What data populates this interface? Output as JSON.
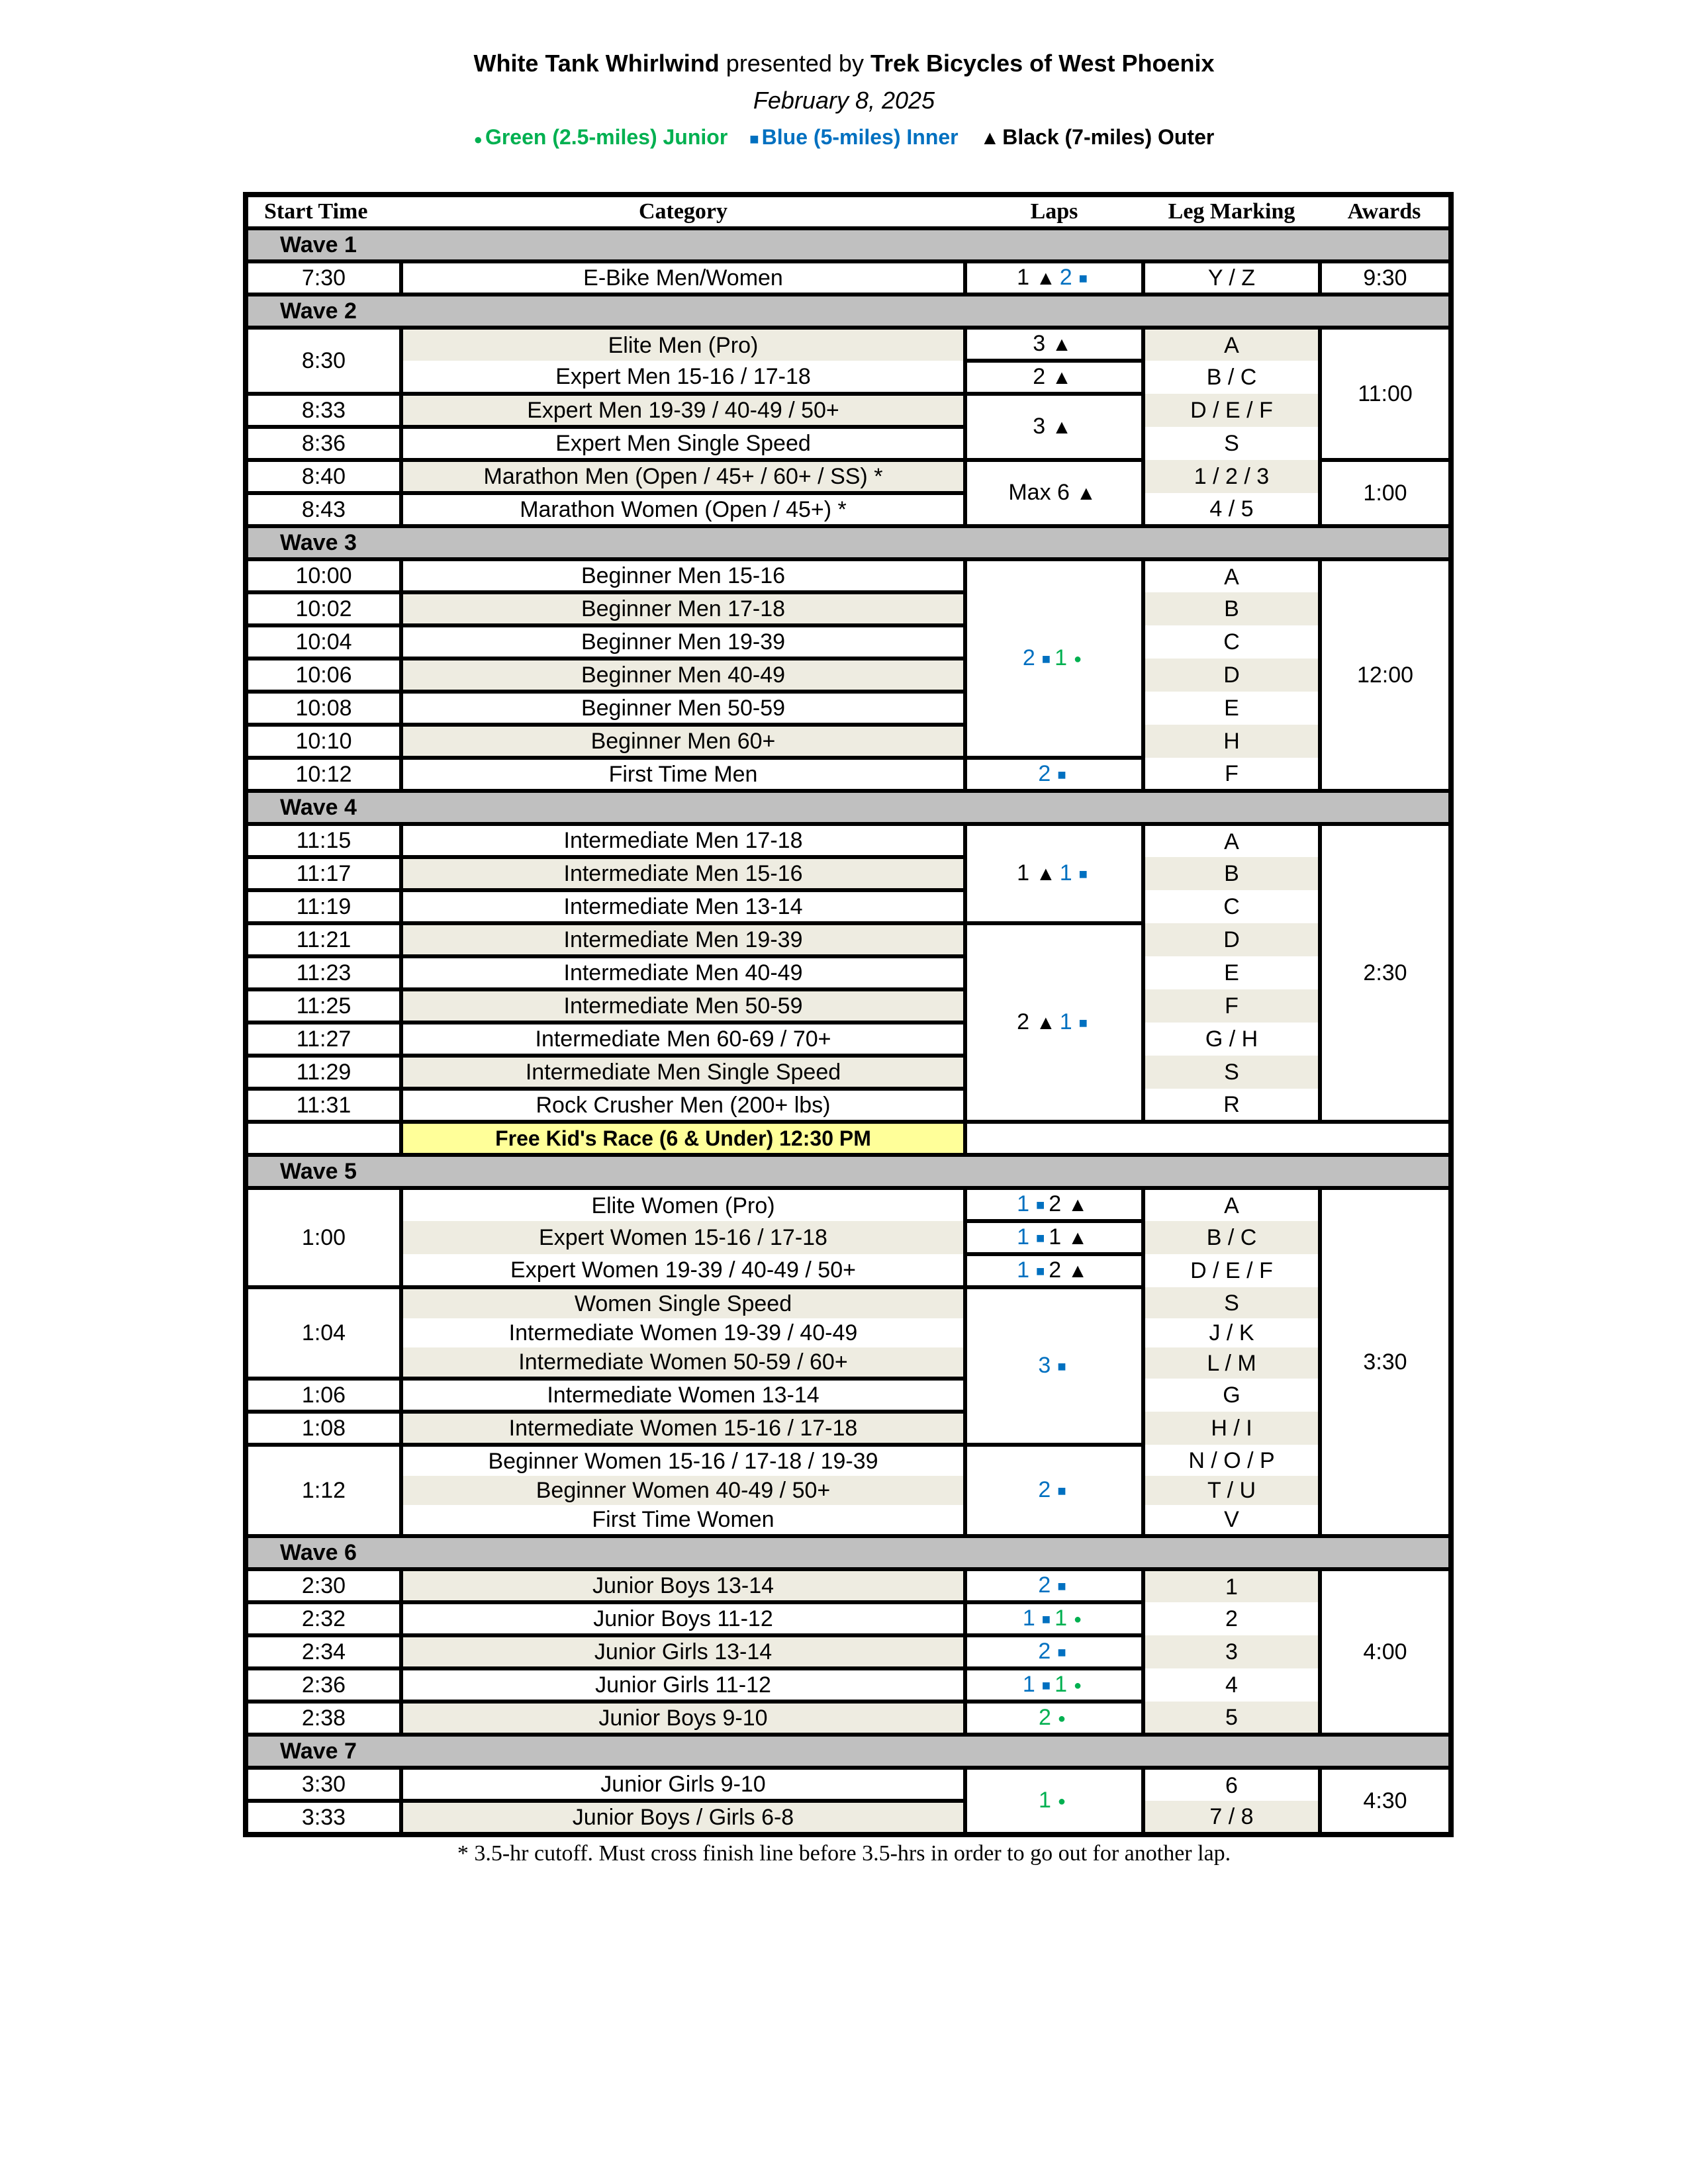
{
  "header": {
    "event": "White Tank Whirlwind",
    "presented_by": "presented by",
    "sponsor": "Trek Bicycles of West Phoenix",
    "date": "February 8, 2025",
    "legend": [
      {
        "course": "green",
        "label": "Green (2.5-miles) Junior",
        "icon": "circle"
      },
      {
        "course": "blue",
        "label": "Blue (5-miles) Inner",
        "icon": "square"
      },
      {
        "course": "black",
        "label": "Black (7-miles) Outer",
        "icon": "triangle"
      }
    ]
  },
  "colors": {
    "green": "#00B050",
    "blue": "#0070C0",
    "black": "#000000",
    "wave_bg": "#C0C0C0",
    "shade_bg": "#EEECE1",
    "kids_bg": "#FFFF99"
  },
  "columns": [
    "Start Time",
    "Category",
    "Laps",
    "Leg Marking",
    "Awards"
  ],
  "sections": [
    {
      "type": "wave",
      "label": "Wave 1",
      "rows": [
        {
          "category": "E-Bike Men/Women",
          "leg": "Y / Z",
          "shaded": false
        }
      ],
      "times": [
        {
          "time": "7:30",
          "span": 1
        }
      ],
      "laps": [
        {
          "parts": [
            {
              "n": "1",
              "course": "black"
            },
            {
              "n": "2",
              "course": "blue"
            }
          ],
          "span": 1
        }
      ],
      "awards": [
        {
          "award": "9:30",
          "span": 1
        }
      ]
    },
    {
      "type": "wave",
      "label": "Wave 2",
      "rows": [
        {
          "category": "Elite Men (Pro)",
          "leg": "A",
          "shaded": true
        },
        {
          "category": "Expert Men 15-16 / 17-18",
          "leg": "B / C",
          "shaded": false
        },
        {
          "category": "Expert Men 19-39 / 40-49 / 50+",
          "leg": "D / E / F",
          "shaded": true
        },
        {
          "category": "Expert Men Single Speed",
          "leg": "S",
          "shaded": false
        },
        {
          "category": "Marathon Men (Open / 45+ / 60+ / SS) *",
          "leg": "1 / 2 / 3",
          "shaded": true
        },
        {
          "category": "Marathon Women (Open / 45+) *",
          "leg": "4 / 5",
          "shaded": false
        }
      ],
      "times": [
        {
          "time": "8:30",
          "span": 2
        },
        {
          "time": "8:33",
          "span": 1
        },
        {
          "time": "8:36",
          "span": 1
        },
        {
          "time": "8:40",
          "span": 1
        },
        {
          "time": "8:43",
          "span": 1
        }
      ],
      "laps": [
        {
          "parts": [
            {
              "n": "3",
              "course": "black"
            }
          ],
          "span": 1
        },
        {
          "parts": [
            {
              "n": "2",
              "course": "black"
            }
          ],
          "span": 1
        },
        {
          "parts": [
            {
              "n": "3",
              "course": "black"
            }
          ],
          "span": 2
        },
        {
          "parts": [
            {
              "n": "Max 6",
              "course": "black"
            }
          ],
          "span": 2
        }
      ],
      "awards": [
        {
          "award": "11:00",
          "span": 4
        },
        {
          "award": "1:00",
          "span": 2
        }
      ]
    },
    {
      "type": "wave",
      "label": "Wave 3",
      "rows": [
        {
          "category": "Beginner Men 15-16",
          "leg": "A",
          "shaded": false
        },
        {
          "category": "Beginner Men 17-18",
          "leg": "B",
          "shaded": true
        },
        {
          "category": "Beginner Men 19-39",
          "leg": "C",
          "shaded": false
        },
        {
          "category": "Beginner Men 40-49",
          "leg": "D",
          "shaded": true
        },
        {
          "category": "Beginner Men 50-59",
          "leg": "E",
          "shaded": false
        },
        {
          "category": "Beginner Men 60+",
          "leg": "H",
          "shaded": true
        },
        {
          "category": "First Time Men",
          "leg": "F",
          "shaded": false
        }
      ],
      "times": [
        {
          "time": "10:00",
          "span": 1
        },
        {
          "time": "10:02",
          "span": 1
        },
        {
          "time": "10:04",
          "span": 1
        },
        {
          "time": "10:06",
          "span": 1
        },
        {
          "time": "10:08",
          "span": 1
        },
        {
          "time": "10:10",
          "span": 1
        },
        {
          "time": "10:12",
          "span": 1
        }
      ],
      "laps": [
        {
          "parts": [
            {
              "n": "2",
              "course": "blue"
            },
            {
              "n": "1",
              "course": "green"
            }
          ],
          "span": 6
        },
        {
          "parts": [
            {
              "n": "2",
              "course": "blue"
            }
          ],
          "span": 1
        }
      ],
      "awards": [
        {
          "award": "12:00",
          "span": 7
        }
      ]
    },
    {
      "type": "wave",
      "label": "Wave 4",
      "rows": [
        {
          "category": "Intermediate Men 17-18",
          "leg": "A",
          "shaded": false
        },
        {
          "category": "Intermediate Men 15-16",
          "leg": "B",
          "shaded": true
        },
        {
          "category": "Intermediate Men 13-14",
          "leg": "C",
          "shaded": false
        },
        {
          "category": "Intermediate Men 19-39",
          "leg": "D",
          "shaded": true
        },
        {
          "category": "Intermediate Men 40-49",
          "leg": "E",
          "shaded": false
        },
        {
          "category": "Intermediate Men 50-59",
          "leg": "F",
          "shaded": true
        },
        {
          "category": "Intermediate Men 60-69 / 70+",
          "leg": "G / H",
          "shaded": false
        },
        {
          "category": "Intermediate Men Single Speed",
          "leg": "S",
          "shaded": true
        },
        {
          "category": "Rock Crusher Men (200+ lbs)",
          "leg": "R",
          "shaded": false
        }
      ],
      "times": [
        {
          "time": "11:15",
          "span": 1
        },
        {
          "time": "11:17",
          "span": 1
        },
        {
          "time": "11:19",
          "span": 1
        },
        {
          "time": "11:21",
          "span": 1
        },
        {
          "time": "11:23",
          "span": 1
        },
        {
          "time": "11:25",
          "span": 1
        },
        {
          "time": "11:27",
          "span": 1
        },
        {
          "time": "11:29",
          "span": 1
        },
        {
          "time": "11:31",
          "span": 1
        }
      ],
      "laps": [
        {
          "parts": [
            {
              "n": "1",
              "course": "black"
            },
            {
              "n": "1",
              "course": "blue"
            }
          ],
          "span": 3
        },
        {
          "parts": [
            {
              "n": "2",
              "course": "black"
            },
            {
              "n": "1",
              "course": "blue"
            }
          ],
          "span": 6
        }
      ],
      "awards": [
        {
          "award": "2:30",
          "span": 9
        }
      ]
    },
    {
      "type": "kids",
      "label": "Free Kid's Race (6 & Under) 12:30 PM"
    },
    {
      "type": "wave",
      "label": "Wave 5",
      "rows": [
        {
          "category": "Elite Women (Pro)",
          "leg": "A",
          "shaded": false
        },
        {
          "category": "Expert Women 15-16 / 17-18",
          "leg": "B / C",
          "shaded": true
        },
        {
          "category": "Expert Women 19-39 / 40-49 / 50+",
          "leg": "D / E / F",
          "shaded": false
        },
        {
          "category": "Women Single Speed",
          "leg": "S",
          "shaded": true
        },
        {
          "category": "Intermediate Women 19-39 / 40-49",
          "leg": "J / K",
          "shaded": false
        },
        {
          "category": "Intermediate Women 50-59 / 60+",
          "leg": "L / M",
          "shaded": true
        },
        {
          "category": "Intermediate Women 13-14",
          "leg": "G",
          "shaded": false
        },
        {
          "category": "Intermediate Women 15-16 / 17-18",
          "leg": "H / I",
          "shaded": true
        },
        {
          "category": "Beginner Women 15-16 / 17-18 / 19-39",
          "leg": "N / O / P",
          "shaded": false
        },
        {
          "category": "Beginner Women 40-49 / 50+",
          "leg": "T / U",
          "shaded": true
        },
        {
          "category": "First Time Women",
          "leg": "V",
          "shaded": false
        }
      ],
      "times": [
        {
          "time": "1:00",
          "span": 3
        },
        {
          "time": "1:04",
          "span": 3
        },
        {
          "time": "1:06",
          "span": 1
        },
        {
          "time": "1:08",
          "span": 1
        },
        {
          "time": "1:12",
          "span": 3
        }
      ],
      "laps": [
        {
          "parts": [
            {
              "n": "1",
              "course": "blue"
            },
            {
              "n": "2",
              "course": "black"
            }
          ],
          "span": 1
        },
        {
          "parts": [
            {
              "n": "1",
              "course": "blue"
            },
            {
              "n": "1",
              "course": "black"
            }
          ],
          "span": 1
        },
        {
          "parts": [
            {
              "n": "1",
              "course": "blue"
            },
            {
              "n": "2",
              "course": "black"
            }
          ],
          "span": 1
        },
        {
          "parts": [
            {
              "n": "3",
              "course": "blue"
            }
          ],
          "span": 5
        },
        {
          "parts": [
            {
              "n": "2",
              "course": "blue"
            }
          ],
          "span": 3
        }
      ],
      "awards": [
        {
          "award": "3:30",
          "span": 11
        }
      ]
    },
    {
      "type": "wave",
      "label": "Wave 6",
      "rows": [
        {
          "category": "Junior Boys 13-14",
          "leg": "1",
          "shaded": true
        },
        {
          "category": "Junior Boys 11-12",
          "leg": "2",
          "shaded": false
        },
        {
          "category": "Junior Girls 13-14",
          "leg": "3",
          "shaded": true
        },
        {
          "category": "Junior Girls 11-12",
          "leg": "4",
          "shaded": false
        },
        {
          "category": "Junior Boys 9-10",
          "leg": "5",
          "shaded": true
        }
      ],
      "times": [
        {
          "time": "2:30",
          "span": 1
        },
        {
          "time": "2:32",
          "span": 1
        },
        {
          "time": "2:34",
          "span": 1
        },
        {
          "time": "2:36",
          "span": 1
        },
        {
          "time": "2:38",
          "span": 1
        }
      ],
      "laps": [
        {
          "parts": [
            {
              "n": "2",
              "course": "blue"
            }
          ],
          "span": 1
        },
        {
          "parts": [
            {
              "n": "1",
              "course": "blue"
            },
            {
              "n": "1",
              "course": "green"
            }
          ],
          "span": 1
        },
        {
          "parts": [
            {
              "n": "2",
              "course": "blue"
            }
          ],
          "span": 1
        },
        {
          "parts": [
            {
              "n": "1",
              "course": "blue"
            },
            {
              "n": "1",
              "course": "green"
            }
          ],
          "span": 1
        },
        {
          "parts": [
            {
              "n": "2",
              "course": "green"
            }
          ],
          "span": 1
        }
      ],
      "awards": [
        {
          "award": "4:00",
          "span": 5
        }
      ]
    },
    {
      "type": "wave",
      "label": "Wave 7",
      "rows": [
        {
          "category": "Junior Girls 9-10",
          "leg": "6",
          "shaded": false
        },
        {
          "category": "Junior Boys / Girls 6-8",
          "leg": "7 / 8",
          "shaded": true
        }
      ],
      "times": [
        {
          "time": "3:30",
          "span": 1
        },
        {
          "time": "3:33",
          "span": 1
        }
      ],
      "laps": [
        {
          "parts": [
            {
              "n": "1",
              "course": "green"
            }
          ],
          "span": 2
        }
      ],
      "awards": [
        {
          "award": "4:30",
          "span": 2
        }
      ]
    }
  ],
  "footnote": "* 3.5-hr cutoff. Must cross finish line before 3.5-hrs in order to go out for another lap."
}
